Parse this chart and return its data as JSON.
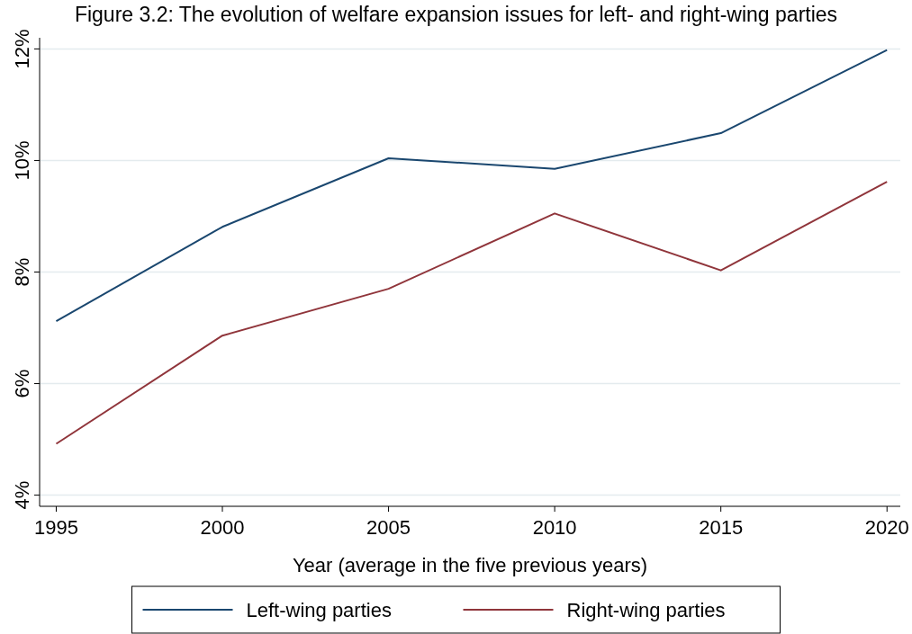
{
  "chart_data": {
    "type": "line",
    "title": "Figure 3.2: The evolution of welfare expansion issues for left- and right-wing parties",
    "xlabel": "Year (average in the five previous years)",
    "x": [
      1995,
      2000,
      2005,
      2010,
      2015,
      2020
    ],
    "series": [
      {
        "name": "Left-wing parties",
        "color": "#1a476f",
        "values": [
          7.12,
          8.81,
          10.04,
          9.85,
          10.49,
          11.98
        ]
      },
      {
        "name": "Right-wing parties",
        "color": "#90353b",
        "values": [
          4.92,
          6.86,
          7.7,
          9.05,
          8.03,
          9.62
        ]
      }
    ],
    "xlim": [
      1994.5,
      2020.4
    ],
    "xticks": [
      1995,
      2000,
      2005,
      2010,
      2015,
      2020
    ],
    "ylim": [
      3.8,
      12.2
    ],
    "yticks": [
      {
        "value": 4,
        "label": "4%"
      },
      {
        "value": 6,
        "label": "6%"
      },
      {
        "value": 8,
        "label": "8%"
      },
      {
        "value": 10,
        "label": "10%"
      },
      {
        "value": 12,
        "label": "12%"
      }
    ],
    "grid": "y",
    "legend": "bottom",
    "marker": "none",
    "line_style": "solid"
  }
}
